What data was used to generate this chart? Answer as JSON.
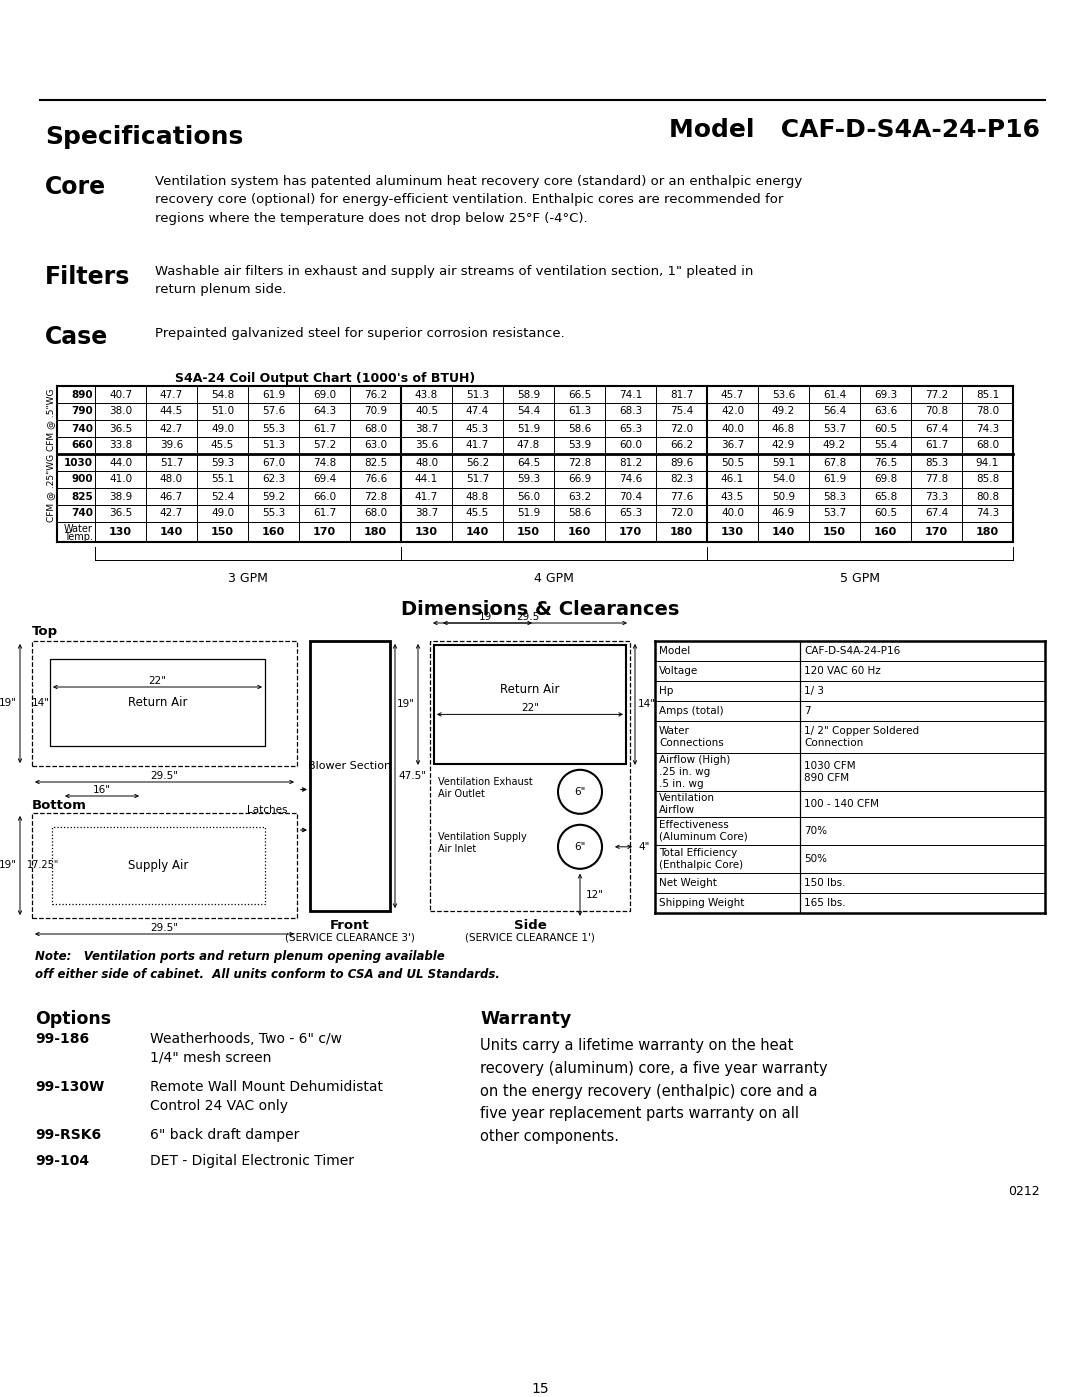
{
  "title_left": "Specifications",
  "title_right": "Model   CAF-D-S4A-24-P16",
  "bg_color": "#ffffff",
  "page_number": "15",
  "core_label": "Core",
  "core_text": "Ventilation system has patented aluminum heat recovery core (standard) or an enthalpic energy\nrecovery core (optional) for energy-efficient ventilation. Enthalpic cores are recommended for\nregions where the temperature does not drop below 25°F (-4°C).",
  "filters_label": "Filters",
  "filters_text": "Washable air filters in exhaust and supply air streams of ventilation section, 1\" pleated in\nreturn plenum side.",
  "case_label": "Case",
  "case_text": "Prepainted galvanized steel for superior corrosion resistance.",
  "table_title": "S4A-24 Coil Output Chart (1000's of BTUH)",
  "cfm_5wg_label": "CFM @ .5\"WG",
  "cfm_25wg_label": "CFM @ .25\"WG",
  "cfm_5wg_rows": [
    {
      "cfm": "890",
      "values": [
        40.7,
        47.7,
        54.8,
        61.9,
        69.0,
        76.2,
        43.8,
        51.3,
        58.9,
        66.5,
        74.1,
        81.7,
        45.7,
        53.6,
        61.4,
        69.3,
        77.2,
        85.1
      ]
    },
    {
      "cfm": "790",
      "values": [
        38.0,
        44.5,
        51.0,
        57.6,
        64.3,
        70.9,
        40.5,
        47.4,
        54.4,
        61.3,
        68.3,
        75.4,
        42.0,
        49.2,
        56.4,
        63.6,
        70.8,
        78.0
      ]
    },
    {
      "cfm": "740",
      "values": [
        36.5,
        42.7,
        49.0,
        55.3,
        61.7,
        68.0,
        38.7,
        45.3,
        51.9,
        58.6,
        65.3,
        72.0,
        40.0,
        46.8,
        53.7,
        60.5,
        67.4,
        74.3
      ]
    },
    {
      "cfm": "660",
      "values": [
        33.8,
        39.6,
        45.5,
        51.3,
        57.2,
        63.0,
        35.6,
        41.7,
        47.8,
        53.9,
        60.0,
        66.2,
        36.7,
        42.9,
        49.2,
        55.4,
        61.7,
        68.0
      ]
    }
  ],
  "cfm_25wg_rows": [
    {
      "cfm": "1030",
      "values": [
        44.0,
        51.7,
        59.3,
        67.0,
        74.8,
        82.5,
        48.0,
        56.2,
        64.5,
        72.8,
        81.2,
        89.6,
        50.5,
        59.1,
        67.8,
        76.5,
        85.3,
        94.1
      ]
    },
    {
      "cfm": "900",
      "values": [
        41.0,
        48.0,
        55.1,
        62.3,
        69.4,
        76.6,
        44.1,
        51.7,
        59.3,
        66.9,
        74.6,
        82.3,
        46.1,
        54.0,
        61.9,
        69.8,
        77.8,
        85.8
      ]
    },
    {
      "cfm": "825",
      "values": [
        38.9,
        46.7,
        52.4,
        59.2,
        66.0,
        72.8,
        41.7,
        48.8,
        56.0,
        63.2,
        70.4,
        77.6,
        43.5,
        50.9,
        58.3,
        65.8,
        73.3,
        80.8
      ]
    },
    {
      "cfm": "740",
      "values": [
        36.5,
        42.7,
        49.0,
        55.3,
        61.7,
        68.0,
        38.7,
        45.5,
        51.9,
        58.6,
        65.3,
        72.0,
        40.0,
        46.9,
        53.7,
        60.5,
        67.4,
        74.3
      ]
    }
  ],
  "water_temps": [
    130,
    140,
    150,
    160,
    170,
    180,
    130,
    140,
    150,
    160,
    170,
    180,
    130,
    140,
    150,
    160,
    170,
    180
  ],
  "gpm_labels": [
    "3 GPM",
    "4 GPM",
    "5 GPM"
  ],
  "dim_title": "Dimensions & Clearances",
  "spec_table": [
    [
      "Model",
      "CAF-D-S4A-24-P16"
    ],
    [
      "Voltage",
      "120 VAC 60 Hz"
    ],
    [
      "Hp",
      "1/ 3"
    ],
    [
      "Amps (total)",
      "7"
    ],
    [
      "Water\nConnections",
      "1/ 2\" Copper Soldered\nConnection"
    ],
    [
      "Airflow (High)\n.25 in. wg\n.5 in. wg",
      "1030 CFM\n890 CFM"
    ],
    [
      "Ventilation\nAirflow",
      "100 - 140 CFM"
    ],
    [
      "Effectiveness\n(Aluminum Core)",
      "70%"
    ],
    [
      "Total Efficiency\n(Enthalpic Core)",
      "50%"
    ],
    [
      "Net Weight",
      "150 lbs."
    ],
    [
      "Shipping Weight",
      "165 lbs."
    ]
  ],
  "spec_row_heights": [
    20,
    20,
    20,
    20,
    32,
    38,
    26,
    28,
    28,
    20,
    20
  ],
  "options_title": "Options",
  "options": [
    [
      "99-186",
      "Weatherhoods, Two - 6\" c/w\n1/4\" mesh screen"
    ],
    [
      "99-130W",
      "Remote Wall Mount Dehumidistat\nControl 24 VAC only"
    ],
    [
      "99-RSK6",
      "6\" back draft damper"
    ],
    [
      "99-104",
      "DET - Digital Electronic Timer"
    ]
  ],
  "warranty_title": "Warranty",
  "warranty_text": "Units carry a lifetime warranty on the heat\nrecovery (aluminum) core, a five year warranty\non the energy recovery (enthalpic) core and a\nfive year replacement parts warranty on all\nother components.",
  "note_text": "Note:   Ventilation ports and return plenum opening available\noff either side of cabinet.  All units conform to CSA and UL Standards.",
  "doc_number": "0212"
}
